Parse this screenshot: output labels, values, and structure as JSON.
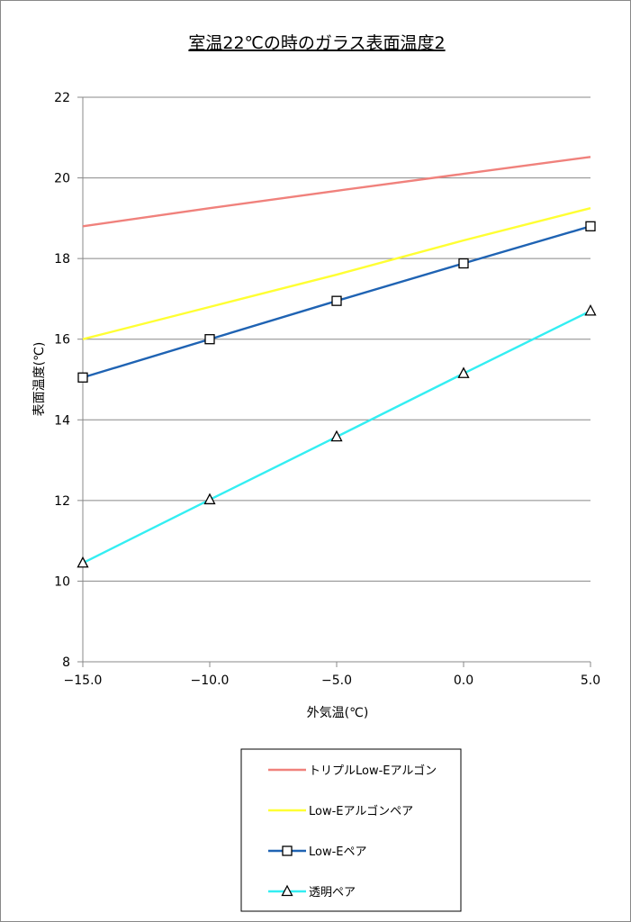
{
  "chart_data": {
    "type": "line",
    "title": "室温22℃の時のガラス表面温度2",
    "xlabel": "外気温(℃)",
    "ylabel": "表面温度(℃)",
    "x": [
      -15.0,
      -10.0,
      -5.0,
      0.0,
      5.0
    ],
    "x_tick_labels": [
      "−15.0",
      "−10.0",
      "−5.0",
      "0.0",
      "5.0"
    ],
    "xlim": [
      -15,
      5
    ],
    "ylim": [
      8,
      22
    ],
    "y_ticks": [
      8,
      10,
      12,
      14,
      16,
      18,
      20,
      22
    ],
    "y_tick_labels": [
      "8",
      "10",
      "12",
      "14",
      "16",
      "18",
      "20",
      "22"
    ],
    "grid": "horizontal",
    "legend_position": "bottom",
    "series": [
      {
        "name": "トリプルLow-Eアルゴン",
        "values": [
          18.8,
          19.25,
          19.68,
          20.1,
          20.52
        ],
        "color": "#f0817c",
        "marker": "none"
      },
      {
        "name": "Low-Eアルゴンペア",
        "values": [
          16.0,
          16.8,
          17.6,
          18.45,
          19.25
        ],
        "color": "#ffff33",
        "marker": "none"
      },
      {
        "name": "Low-Eペア",
        "values": [
          15.05,
          16.0,
          16.95,
          17.88,
          18.8
        ],
        "color": "#1f63b3",
        "marker": "square"
      },
      {
        "name": "透明ペア",
        "values": [
          10.45,
          12.02,
          13.58,
          15.15,
          16.7
        ],
        "color": "#33eef2",
        "marker": "triangle"
      }
    ]
  }
}
